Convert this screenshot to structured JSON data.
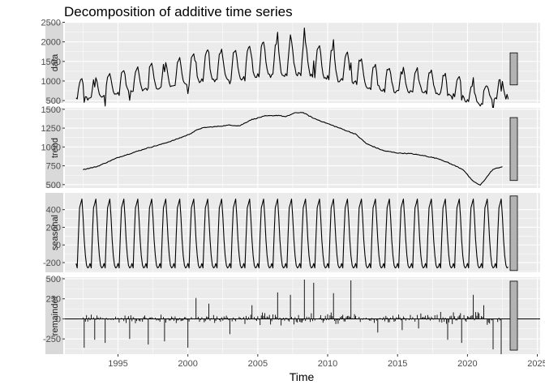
{
  "chart_data": {
    "type": "line",
    "title": "Decomposition of additive time series",
    "xlabel": "Time",
    "x_ticks": [
      1995,
      2000,
      2005,
      2010,
      2015,
      2020,
      2025
    ],
    "xlim": [
      1991.2,
      2025.2
    ],
    "series_start": 1992.0,
    "series_frequency": 12,
    "grid": true,
    "panels": [
      {
        "name": "data",
        "ylim": [
          440,
          2490
        ],
        "y_ticks": [
          500,
          1000,
          1500,
          2000,
          2500
        ],
        "scale_bar_range": [
          900,
          1720
        ],
        "seasonal_profile": [
          -210,
          -260,
          110,
          420,
          470,
          520,
          320,
          60,
          -120,
          -230,
          -260,
          -250
        ],
        "trend_knots": [
          [
            1992.5,
            700
          ],
          [
            1995,
            880
          ],
          [
            1998,
            1060
          ],
          [
            2000,
            1180
          ],
          [
            2001,
            1260
          ],
          [
            2003,
            1290
          ],
          [
            2004,
            1360
          ],
          [
            2006,
            1420
          ],
          [
            2007,
            1400
          ],
          [
            2008,
            1460
          ],
          [
            2009.5,
            1360
          ],
          [
            2011,
            1240
          ],
          [
            2013,
            1020
          ],
          [
            2015,
            920
          ],
          [
            2017,
            880
          ],
          [
            2019,
            760
          ],
          [
            2020.3,
            580
          ],
          [
            2021,
            500
          ],
          [
            2022.5,
            740
          ],
          [
            2023,
            760
          ]
        ]
      },
      {
        "name": "trend",
        "ylim": [
          455,
          1520
        ],
        "y_ticks": [
          500,
          750,
          1000,
          1250,
          1500
        ],
        "scale_bar_range": [
          555,
          1390
        ],
        "knots": [
          [
            1992.5,
            700
          ],
          [
            1993.5,
            740
          ],
          [
            1995,
            860
          ],
          [
            1996,
            920
          ],
          [
            1997,
            980
          ],
          [
            1998,
            1030
          ],
          [
            1999,
            1090
          ],
          [
            2000,
            1160
          ],
          [
            2000.8,
            1240
          ],
          [
            2001.3,
            1260
          ],
          [
            2002,
            1270
          ],
          [
            2003,
            1290
          ],
          [
            2003.7,
            1280
          ],
          [
            2004.5,
            1360
          ],
          [
            2005.5,
            1410
          ],
          [
            2006.5,
            1420
          ],
          [
            2007,
            1400
          ],
          [
            2007.6,
            1450
          ],
          [
            2008.2,
            1460
          ],
          [
            2009,
            1380
          ],
          [
            2010,
            1310
          ],
          [
            2011,
            1240
          ],
          [
            2012,
            1170
          ],
          [
            2012.8,
            1040
          ],
          [
            2014,
            950
          ],
          [
            2015,
            920
          ],
          [
            2016,
            910
          ],
          [
            2017,
            880
          ],
          [
            2018,
            840
          ],
          [
            2019,
            760
          ],
          [
            2019.7,
            700
          ],
          [
            2020.3,
            560
          ],
          [
            2020.9,
            490
          ],
          [
            2021.3,
            580
          ],
          [
            2021.8,
            700
          ],
          [
            2022.5,
            740
          ],
          [
            2023,
            745
          ]
        ]
      },
      {
        "name": "seasonal",
        "ylim": [
          -310,
          590
        ],
        "y_ticks": [
          -200,
          0,
          200,
          400
        ],
        "scale_bar_range": [
          -290,
          555
        ],
        "profile": [
          -210,
          -260,
          110,
          420,
          470,
          520,
          320,
          60,
          -120,
          -230,
          -260,
          -250
        ]
      },
      {
        "name": "remainder",
        "ylim": [
          -440,
          520
        ],
        "y_ticks": [
          -250,
          0,
          250,
          500
        ],
        "scale_bar_range": [
          -390,
          470
        ],
        "spikes": [
          [
            1992.6,
            -360
          ],
          [
            1993.3,
            -260
          ],
          [
            1994.1,
            -300
          ],
          [
            1995.8,
            -250
          ],
          [
            1997.2,
            -320
          ],
          [
            1998.3,
            -280
          ],
          [
            2000.0,
            -360
          ],
          [
            2000.6,
            260
          ],
          [
            2001.5,
            190
          ],
          [
            2003.0,
            -190
          ],
          [
            2004.6,
            170
          ],
          [
            2006.4,
            330
          ],
          [
            2007.3,
            300
          ],
          [
            2008.3,
            490
          ],
          [
            2009.0,
            450
          ],
          [
            2010.4,
            320
          ],
          [
            2011.7,
            480
          ],
          [
            2013.6,
            -170
          ],
          [
            2015.3,
            -140
          ],
          [
            2016.5,
            -120
          ],
          [
            2018.6,
            -260
          ],
          [
            2019.6,
            -300
          ],
          [
            2020.4,
            300
          ],
          [
            2021.2,
            170
          ],
          [
            2021.8,
            -380
          ],
          [
            2022.4,
            -440
          ],
          [
            2022.8,
            120
          ]
        ]
      }
    ]
  }
}
